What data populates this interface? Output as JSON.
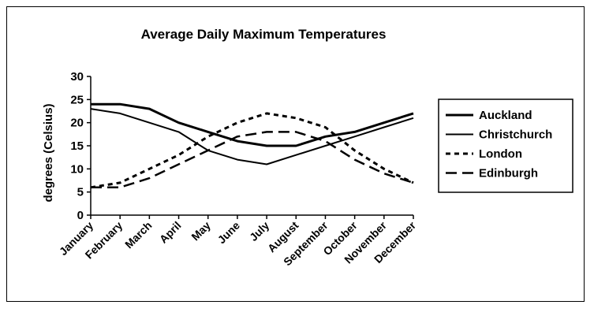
{
  "chart_data": {
    "type": "line",
    "title": "Average Daily Maximum Temperatures",
    "xlabel": "",
    "ylabel": "degrees (Celsius)",
    "ylim": [
      0,
      30
    ],
    "yticks": [
      0,
      5,
      10,
      15,
      20,
      25,
      30
    ],
    "grid": false,
    "legend_position": "right",
    "categories": [
      "January",
      "February",
      "March",
      "April",
      "May",
      "June",
      "July",
      "August",
      "September",
      "October",
      "November",
      "December"
    ],
    "series": [
      {
        "name": "Auckland",
        "style": "solid-thick",
        "values": [
          24,
          24,
          23,
          20,
          18,
          16,
          15,
          15,
          17,
          18,
          20,
          22
        ]
      },
      {
        "name": "Christchurch",
        "style": "solid-thin",
        "values": [
          23,
          22,
          20,
          18,
          14,
          12,
          11,
          13,
          15,
          17,
          19,
          21
        ]
      },
      {
        "name": "London",
        "style": "short-dash",
        "values": [
          6,
          7,
          10,
          13,
          17,
          20,
          22,
          21,
          19,
          14,
          10,
          7
        ]
      },
      {
        "name": "Edinburgh",
        "style": "long-dash",
        "values": [
          6,
          6,
          8,
          11,
          14,
          17,
          18,
          18,
          16,
          12,
          9,
          7
        ]
      }
    ],
    "colors": {
      "line": "#000000",
      "background": "#ffffff"
    }
  }
}
